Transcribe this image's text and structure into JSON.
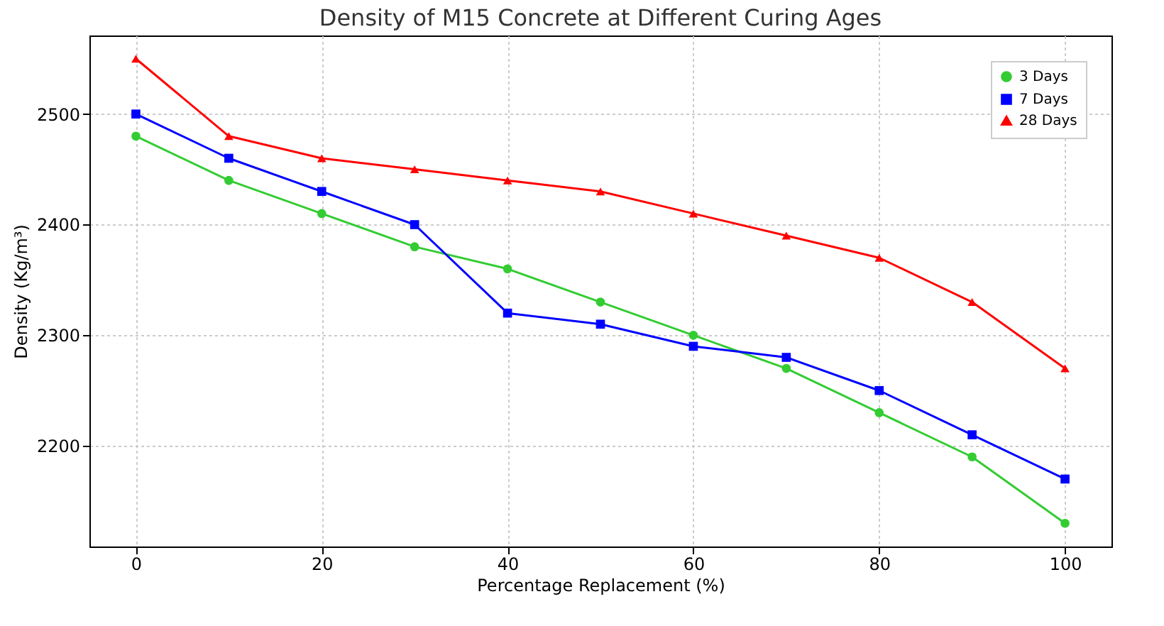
{
  "chart_data": {
    "type": "line",
    "title": "Density of M15 Concrete at Different Curing Ages",
    "xlabel": "Percentage Replacement (%)",
    "ylabel": "Density (Kg/m³)",
    "x": [
      0,
      10,
      20,
      30,
      40,
      50,
      60,
      70,
      80,
      90,
      100
    ],
    "series": [
      {
        "name": "3 Days",
        "color": "#33cc33",
        "marker": "circle",
        "values": [
          2480,
          2440,
          2410,
          2380,
          2360,
          2330,
          2300,
          2270,
          2230,
          2190,
          2130
        ]
      },
      {
        "name": "7 Days",
        "color": "#0000ff",
        "marker": "square",
        "values": [
          2500,
          2460,
          2430,
          2400,
          2320,
          2310,
          2290,
          2280,
          2250,
          2210,
          2170
        ]
      },
      {
        "name": "28 Days",
        "color": "#ff0000",
        "marker": "triangle",
        "values": [
          2550,
          2480,
          2460,
          2450,
          2440,
          2430,
          2410,
          2390,
          2370,
          2330,
          2270
        ]
      }
    ],
    "xlim": [
      -5,
      105
    ],
    "xticks": [
      0,
      20,
      40,
      60,
      80,
      100
    ],
    "ylim": [
      2109,
      2571
    ],
    "yticks": [
      2200,
      2300,
      2400,
      2500
    ],
    "grid": true,
    "legend": "top right",
    "line_style": "solid"
  }
}
